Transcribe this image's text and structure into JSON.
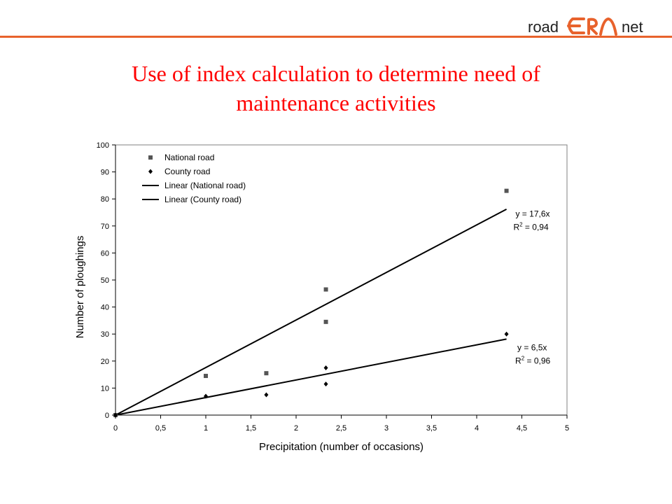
{
  "header": {
    "logo": {
      "left": "road",
      "middle": "ERA",
      "right": "net"
    },
    "accent_color": "#e8622c"
  },
  "slide": {
    "title_line1": "Use of index calculation to determine need of",
    "title_line2": "maintenance activities",
    "title_color": "#ff0000"
  },
  "chart_data": {
    "type": "scatter",
    "xlabel": "Precipitation (number of occasions)",
    "ylabel": "Number of ploughings",
    "xlim": [
      0,
      5
    ],
    "ylim": [
      0,
      100
    ],
    "x_ticks": [
      "0",
      "0,5",
      "1",
      "1,5",
      "2",
      "2,5",
      "3",
      "3,5",
      "4",
      "4,5",
      "5"
    ],
    "y_ticks": [
      "0",
      "10",
      "20",
      "30",
      "40",
      "50",
      "60",
      "70",
      "80",
      "90",
      "100"
    ],
    "grid": false,
    "legend_position": "top-left",
    "legend": [
      "National road",
      "County road",
      "Linear (National road)",
      "Linear (County road)"
    ],
    "series": [
      {
        "name": "National road",
        "marker": "square",
        "color": "#555555",
        "points": [
          [
            0,
            0
          ],
          [
            1,
            14.5
          ],
          [
            1.67,
            15.5
          ],
          [
            2.33,
            46.5
          ],
          [
            2.33,
            34.5
          ],
          [
            4.33,
            83
          ]
        ]
      },
      {
        "name": "County road",
        "marker": "diamond",
        "color": "#000000",
        "points": [
          [
            0,
            0
          ],
          [
            1,
            7
          ],
          [
            1.67,
            7.5
          ],
          [
            2.33,
            17.5
          ],
          [
            2.33,
            11.5
          ],
          [
            4.33,
            30
          ]
        ]
      }
    ],
    "trendlines": [
      {
        "name": "Linear (National road)",
        "slope": 17.6,
        "x_range": [
          0,
          4.33
        ],
        "equation": "y = 17,6x",
        "r2_label": "R",
        "r2_sup": "2",
        "r2_value": " = 0,94"
      },
      {
        "name": "Linear (County road)",
        "slope": 6.5,
        "x_range": [
          0,
          4.33
        ],
        "equation": "y = 6,5x",
        "r2_label": "R",
        "r2_sup": "2",
        "r2_value": " = 0,96"
      }
    ]
  }
}
